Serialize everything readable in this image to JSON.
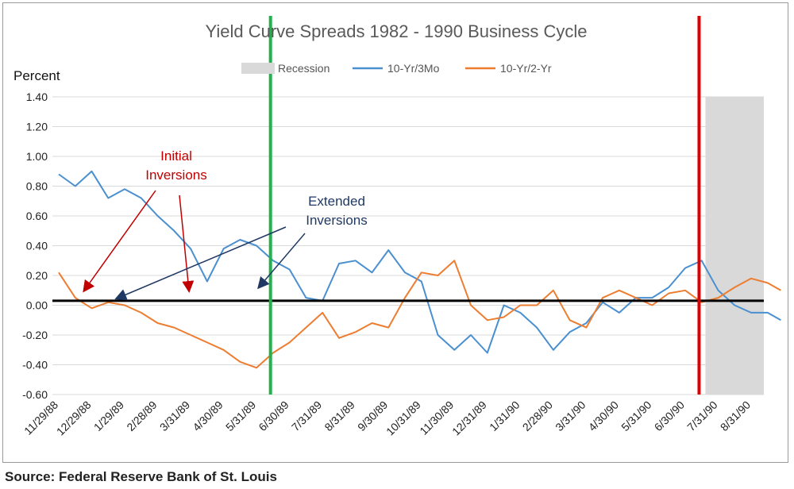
{
  "source_note": "Source: Federal Reserve Bank of St. Louis",
  "chart_data": {
    "type": "line",
    "title": "Yield Curve Spreads  1982 - 1990 Business Cycle",
    "ylabel": "Percent",
    "xlabel": "",
    "ylim": [
      -0.6,
      1.4
    ],
    "yticks": [
      "1.40",
      "1.20",
      "1.00",
      "0.80",
      "0.60",
      "0.40",
      "0.20",
      "0.00",
      "-0.20",
      "-0.40",
      "-0.60"
    ],
    "xtick_labels": [
      "11/29/88",
      "12/29/88",
      "1/29/89",
      "2/28/89",
      "3/31/89",
      "4/30/89",
      "5/31/89",
      "6/30/89",
      "7/31/89",
      "8/31/89",
      "9/30/89",
      "10/31/89",
      "11/30/89",
      "12/31/89",
      "1/31/90",
      "2/28/90",
      "3/31/90",
      "4/30/90",
      "5/31/90",
      "6/30/90",
      "7/31/90",
      "8/31/90"
    ],
    "legend_position": "top",
    "legend": [
      {
        "label": "Recession",
        "kind": "area",
        "color": "#d9d9d9"
      },
      {
        "label": "10-Yr/3Mo",
        "kind": "line",
        "color": "#4a8fd0"
      },
      {
        "label": "10-Yr/2-Yr",
        "kind": "line",
        "color": "#ed7d31"
      }
    ],
    "recession": {
      "start": "7/31/90",
      "end": "8/31/90+"
    },
    "series": [
      {
        "name": "10-Yr/3Mo",
        "color": "#4a8fd0",
        "x": [
          0.0,
          0.5,
          1.0,
          1.5,
          2.0,
          2.5,
          3.0,
          3.5,
          4.0,
          4.5,
          5.0,
          5.5,
          6.0,
          6.5,
          7.0,
          7.5,
          8.0,
          8.5,
          9.0,
          9.5,
          10.0,
          10.5,
          11.0,
          11.5,
          12.0,
          12.5,
          13.0,
          13.5,
          14.0,
          14.5,
          15.0,
          15.5,
          16.0,
          16.5,
          17.0,
          17.5,
          18.0,
          18.5,
          19.0,
          19.5,
          20.0,
          20.5,
          21.0,
          21.5,
          21.9
        ],
        "values": [
          0.88,
          0.8,
          0.9,
          0.72,
          0.78,
          0.72,
          0.6,
          0.5,
          0.38,
          0.16,
          0.38,
          0.44,
          0.4,
          0.3,
          0.24,
          0.05,
          0.03,
          0.28,
          0.3,
          0.22,
          0.37,
          0.22,
          0.16,
          -0.2,
          -0.3,
          -0.2,
          -0.32,
          0.0,
          -0.05,
          -0.15,
          -0.3,
          -0.18,
          -0.12,
          0.02,
          -0.05,
          0.05,
          0.05,
          0.12,
          0.25,
          0.3,
          0.1,
          0.0,
          -0.05,
          -0.05,
          -0.1
        ]
      },
      {
        "name": "10-Yr/2-Yr",
        "color": "#ed7d31",
        "x": [
          0.0,
          0.5,
          1.0,
          1.5,
          2.0,
          2.5,
          3.0,
          3.5,
          4.0,
          4.5,
          5.0,
          5.5,
          6.0,
          6.5,
          7.0,
          7.5,
          8.0,
          8.5,
          9.0,
          9.5,
          10.0,
          10.5,
          11.0,
          11.5,
          12.0,
          12.5,
          13.0,
          13.5,
          14.0,
          14.5,
          15.0,
          15.5,
          16.0,
          16.5,
          17.0,
          17.5,
          18.0,
          18.5,
          19.0,
          19.5,
          20.0,
          20.5,
          21.0,
          21.5,
          21.9
        ],
        "values": [
          0.22,
          0.05,
          -0.02,
          0.02,
          0.0,
          -0.05,
          -0.12,
          -0.15,
          -0.2,
          -0.25,
          -0.3,
          -0.38,
          -0.42,
          -0.32,
          -0.25,
          -0.15,
          -0.05,
          -0.22,
          -0.18,
          -0.12,
          -0.15,
          0.05,
          0.22,
          0.2,
          0.3,
          0.0,
          -0.1,
          -0.08,
          0.0,
          0.0,
          0.1,
          -0.1,
          -0.15,
          0.05,
          0.1,
          0.05,
          0.0,
          0.08,
          0.1,
          0.02,
          0.05,
          0.12,
          0.18,
          0.15,
          0.1
        ]
      }
    ],
    "annotations": [
      {
        "text_lines": [
          "Initial",
          "Inversions"
        ],
        "color": "#c00000"
      },
      {
        "text_lines": [
          "Extended",
          "Inversions"
        ],
        "color": "#1f3864"
      }
    ],
    "reference_lines": [
      {
        "kind": "horizontal",
        "value": 0.03,
        "color": "#000000"
      },
      {
        "kind": "vertical",
        "at": "6/30/89",
        "color": "#22b14c"
      },
      {
        "kind": "vertical",
        "at": "7/31/90",
        "color": "#e00000"
      }
    ]
  }
}
